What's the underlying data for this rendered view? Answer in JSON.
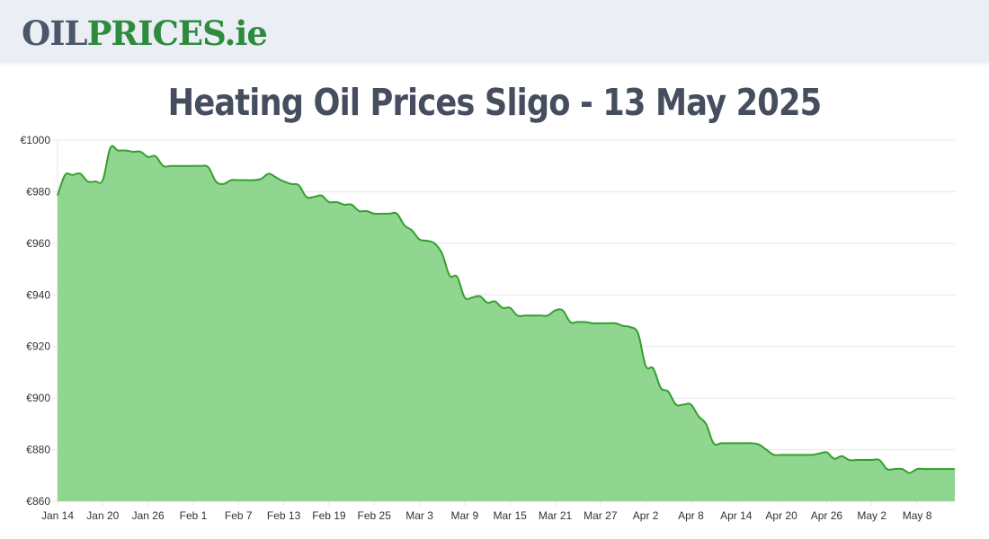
{
  "header": {
    "logo_oil": "OIL",
    "logo_prices": "PRICES",
    "logo_ie": ".ie"
  },
  "page_title": "Heating Oil Prices Sligo - 13 May 2025",
  "colors": {
    "line": "#33a02c",
    "fill": "#90d690",
    "grid": "#e6e6e6"
  },
  "chart_data": {
    "type": "area",
    "title": "Heating Oil Prices Sligo - 13 May 2025",
    "xlabel": "",
    "ylabel": "",
    "y_prefix": "€",
    "ylim": [
      860,
      1000
    ],
    "y_ticks": [
      860,
      880,
      900,
      920,
      940,
      960,
      980,
      1000
    ],
    "x_start_label": "Jan 14",
    "x_end_day": 119,
    "x_ticks": [
      {
        "day": 0,
        "label": "Jan 14"
      },
      {
        "day": 6,
        "label": "Jan 20"
      },
      {
        "day": 12,
        "label": "Jan 26"
      },
      {
        "day": 18,
        "label": "Feb 1"
      },
      {
        "day": 24,
        "label": "Feb 7"
      },
      {
        "day": 30,
        "label": "Feb 13"
      },
      {
        "day": 36,
        "label": "Feb 19"
      },
      {
        "day": 42,
        "label": "Feb 25"
      },
      {
        "day": 48,
        "label": "Mar 3"
      },
      {
        "day": 54,
        "label": "Mar 9"
      },
      {
        "day": 60,
        "label": "Mar 15"
      },
      {
        "day": 66,
        "label": "Mar 21"
      },
      {
        "day": 72,
        "label": "Mar 27"
      },
      {
        "day": 78,
        "label": "Apr 2"
      },
      {
        "day": 84,
        "label": "Apr 8"
      },
      {
        "day": 90,
        "label": "Apr 14"
      },
      {
        "day": 96,
        "label": "Apr 20"
      },
      {
        "day": 102,
        "label": "Apr 26"
      },
      {
        "day": 108,
        "label": "May 2"
      },
      {
        "day": 114,
        "label": "May 8"
      }
    ],
    "series": [
      {
        "name": "Heating Oil Price",
        "points": [
          [
            0,
            978.5
          ],
          [
            1,
            986.5
          ],
          [
            2,
            986.5
          ],
          [
            3,
            987
          ],
          [
            4,
            984
          ],
          [
            5,
            984
          ],
          [
            6,
            984.5
          ],
          [
            7,
            997
          ],
          [
            8,
            996
          ],
          [
            9,
            996
          ],
          [
            10,
            995.5
          ],
          [
            11,
            995.5
          ],
          [
            12,
            993.5
          ],
          [
            13,
            993.8
          ],
          [
            14,
            990
          ],
          [
            15,
            990
          ],
          [
            16,
            990
          ],
          [
            17,
            990
          ],
          [
            18,
            990
          ],
          [
            19,
            990
          ],
          [
            20,
            989.5
          ],
          [
            21,
            984
          ],
          [
            22,
            983
          ],
          [
            23,
            984.5
          ],
          [
            24,
            984.5
          ],
          [
            25,
            984.5
          ],
          [
            26,
            984.5
          ],
          [
            27,
            985
          ],
          [
            28,
            987
          ],
          [
            29,
            985.5
          ],
          [
            30,
            984
          ],
          [
            31,
            983
          ],
          [
            32,
            982.5
          ],
          [
            33,
            978
          ],
          [
            34,
            978
          ],
          [
            35,
            978.5
          ],
          [
            36,
            976
          ],
          [
            37,
            976
          ],
          [
            38,
            975
          ],
          [
            39,
            975
          ],
          [
            40,
            972.5
          ],
          [
            41,
            972.5
          ],
          [
            42,
            971.5
          ],
          [
            43,
            971.5
          ],
          [
            44,
            971.5
          ],
          [
            45,
            971.5
          ],
          [
            46,
            967
          ],
          [
            47,
            965
          ],
          [
            48,
            961.5
          ],
          [
            49,
            961
          ],
          [
            50,
            960
          ],
          [
            51,
            956
          ],
          [
            52,
            947.5
          ],
          [
            53,
            947
          ],
          [
            54,
            939
          ],
          [
            55,
            939
          ],
          [
            56,
            939.5
          ],
          [
            57,
            937
          ],
          [
            58,
            937.5
          ],
          [
            59,
            935
          ],
          [
            60,
            935
          ],
          [
            61,
            932
          ],
          [
            62,
            932
          ],
          [
            63,
            932
          ],
          [
            64,
            932
          ],
          [
            65,
            932
          ],
          [
            66,
            934
          ],
          [
            67,
            934
          ],
          [
            68,
            929.5
          ],
          [
            69,
            929.5
          ],
          [
            70,
            929.5
          ],
          [
            71,
            929
          ],
          [
            72,
            929
          ],
          [
            73,
            929
          ],
          [
            74,
            929
          ],
          [
            75,
            928
          ],
          [
            76,
            927.5
          ],
          [
            77,
            925
          ],
          [
            78,
            912.5
          ],
          [
            79,
            911.5
          ],
          [
            80,
            904
          ],
          [
            81,
            902.5
          ],
          [
            82,
            897.5
          ],
          [
            83,
            897.5
          ],
          [
            84,
            897.5
          ],
          [
            85,
            893
          ],
          [
            86,
            890
          ],
          [
            87,
            882.5
          ],
          [
            88,
            882.5
          ],
          [
            89,
            882.5
          ],
          [
            90,
            882.5
          ],
          [
            91,
            882.5
          ],
          [
            92,
            882.5
          ],
          [
            93,
            882
          ],
          [
            94,
            880
          ],
          [
            95,
            878
          ],
          [
            96,
            878
          ],
          [
            97,
            878
          ],
          [
            98,
            878
          ],
          [
            99,
            878
          ],
          [
            100,
            878
          ],
          [
            101,
            878.5
          ],
          [
            102,
            879
          ],
          [
            103,
            876.5
          ],
          [
            104,
            877.5
          ],
          [
            105,
            876
          ],
          [
            106,
            876
          ],
          [
            107,
            876
          ],
          [
            108,
            876
          ],
          [
            109,
            876
          ],
          [
            110,
            872.5
          ],
          [
            111,
            872.5
          ],
          [
            112,
            872.5
          ],
          [
            113,
            871
          ],
          [
            114,
            872.5
          ],
          [
            115,
            872.5
          ],
          [
            116,
            872.5
          ],
          [
            117,
            872.5
          ],
          [
            118,
            872.5
          ],
          [
            119,
            872.5
          ]
        ]
      }
    ]
  }
}
